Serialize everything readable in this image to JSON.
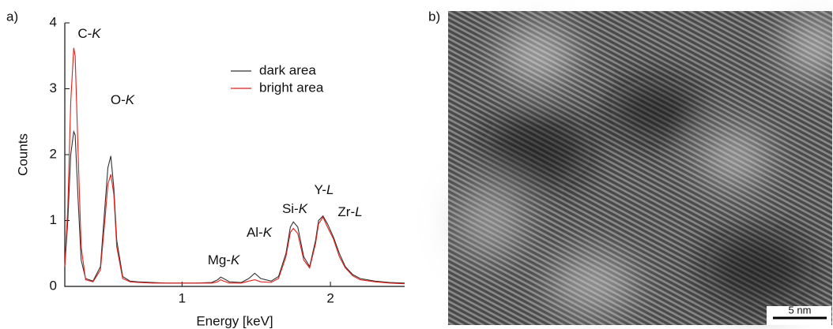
{
  "panel_a_label": "a)",
  "panel_b_label": "b)",
  "scale_bar": "5 nm",
  "chart_data": {
    "type": "line",
    "ylabel": "Counts",
    "xlabel": "Energy [keV]",
    "xlim": [
      0.21,
      2.5
    ],
    "ylim": [
      0,
      4
    ],
    "xticks": [
      1,
      2
    ],
    "yticks": [
      0,
      1,
      2,
      3,
      4
    ],
    "legend": "top-right",
    "annotations": [
      "C-K",
      "O-K",
      "Mg-K",
      "Al-K",
      "Si-K",
      "Y-L",
      "Zr-L"
    ],
    "x": [
      0.21,
      0.23,
      0.25,
      0.27,
      0.28,
      0.3,
      0.32,
      0.35,
      0.4,
      0.45,
      0.48,
      0.5,
      0.52,
      0.54,
      0.56,
      0.6,
      0.65,
      0.7,
      0.8,
      0.9,
      1.0,
      1.1,
      1.2,
      1.24,
      1.26,
      1.28,
      1.32,
      1.4,
      1.45,
      1.49,
      1.53,
      1.6,
      1.65,
      1.7,
      1.73,
      1.75,
      1.78,
      1.82,
      1.86,
      1.9,
      1.92,
      1.95,
      1.98,
      2.02,
      2.06,
      2.1,
      2.15,
      2.2,
      2.3,
      2.4,
      2.5
    ],
    "series": [
      {
        "name": "dark area",
        "color": "#333333",
        "values": [
          0.3,
          1.0,
          2.0,
          2.35,
          2.3,
          1.3,
          0.4,
          0.12,
          0.08,
          0.3,
          1.2,
          1.8,
          1.98,
          1.5,
          0.7,
          0.15,
          0.08,
          0.07,
          0.06,
          0.05,
          0.05,
          0.05,
          0.06,
          0.1,
          0.14,
          0.12,
          0.07,
          0.06,
          0.12,
          0.2,
          0.12,
          0.08,
          0.15,
          0.5,
          0.9,
          0.98,
          0.9,
          0.45,
          0.3,
          0.7,
          1.0,
          1.07,
          0.95,
          0.75,
          0.5,
          0.3,
          0.18,
          0.12,
          0.08,
          0.06,
          0.05
        ]
      },
      {
        "name": "bright area",
        "color": "#e0201b",
        "values": [
          0.3,
          1.2,
          2.8,
          3.62,
          3.5,
          2.0,
          0.6,
          0.1,
          0.07,
          0.25,
          1.0,
          1.55,
          1.7,
          1.4,
          0.6,
          0.12,
          0.07,
          0.06,
          0.05,
          0.05,
          0.05,
          0.05,
          0.05,
          0.07,
          0.1,
          0.08,
          0.05,
          0.05,
          0.08,
          0.1,
          0.07,
          0.06,
          0.12,
          0.45,
          0.82,
          0.88,
          0.8,
          0.4,
          0.28,
          0.65,
          0.95,
          1.05,
          0.9,
          0.72,
          0.45,
          0.28,
          0.16,
          0.1,
          0.07,
          0.05,
          0.04
        ]
      }
    ]
  }
}
